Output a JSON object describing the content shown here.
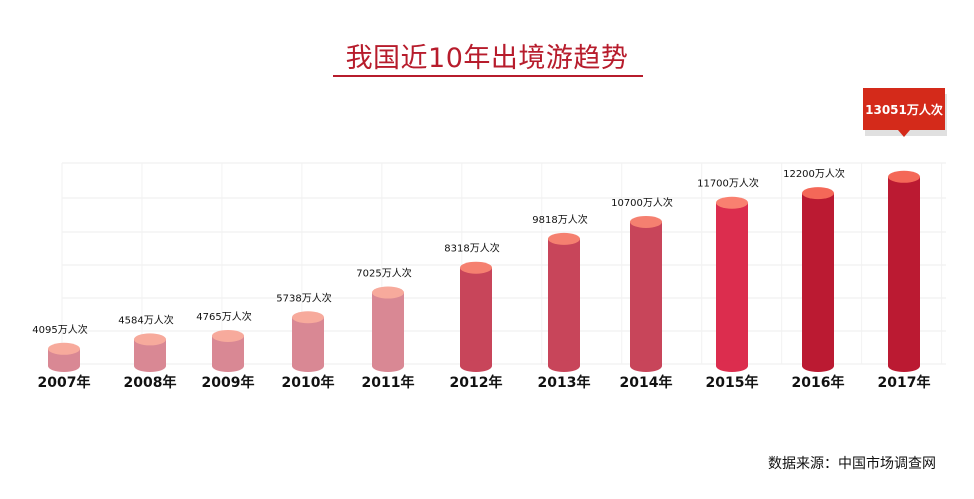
{
  "chart_data": {
    "type": "bar",
    "style": "3d-cylinder",
    "title": "我国近10年出境游趋势",
    "categories": [
      "2007年",
      "2008年",
      "2009年",
      "2010年",
      "2011年",
      "2012年",
      "2013年",
      "2014年",
      "2015年",
      "2016年",
      "2017年"
    ],
    "values": [
      4095,
      4584,
      4765,
      5738,
      7025,
      8318,
      9818,
      10700,
      11700,
      12200,
      13051
    ],
    "data_labels": [
      "4095万人次",
      "4584万人次",
      "4765万人次",
      "5738万人次",
      "7025万人次",
      "8318万人次",
      "9818万人次",
      "10700万人次",
      "11700万人次",
      "12200万人次",
      "13051万人次"
    ],
    "unit": "万人次",
    "highlight": {
      "index": 10,
      "label": "13051万人次",
      "color": "#d42a1a"
    },
    "colors": {
      "body": [
        "#d98894",
        "#d98894",
        "#d98894",
        "#d98894",
        "#d98894",
        "#c8455a",
        "#c8455a",
        "#c8455a",
        "#dc2d4e",
        "#bb1a32",
        "#bb1a32"
      ],
      "top": [
        "#f7aa9c",
        "#f7aa9c",
        "#f7aa9c",
        "#f7aa9c",
        "#f7aa9c",
        "#f58070",
        "#f58070",
        "#f58070",
        "#f98070",
        "#f46858",
        "#f46858"
      ],
      "title": "#b71c2c"
    },
    "ylim": [
      3200,
      13300
    ],
    "grid": true,
    "legend": "none",
    "source": "数据来源：中国市场调查网"
  }
}
